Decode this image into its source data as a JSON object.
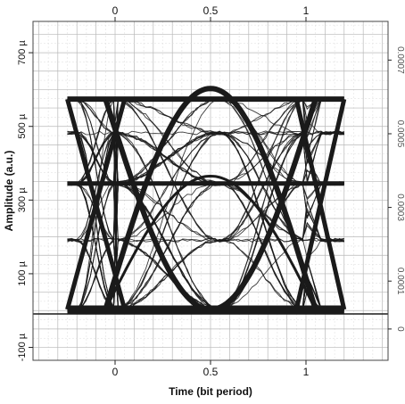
{
  "chart_data": {
    "type": "eye-diagram",
    "title": "",
    "xlabel": "Time (bit period)",
    "ylabel": "Amplitude (a.u.)",
    "x_ticks": [
      {
        "value": 0,
        "label": "0"
      },
      {
        "value": 0.5,
        "label": "0.5"
      },
      {
        "value": 1,
        "label": "1"
      }
    ],
    "top_x_ticks": [
      {
        "value": 0,
        "label": "0"
      },
      {
        "value": 0.5,
        "label": "0.5"
      },
      {
        "value": 1,
        "label": "1"
      }
    ],
    "y_ticks": [
      {
        "value": -0.0001,
        "label": "-100 µ"
      },
      {
        "value": 0.0001,
        "label": "100 µ"
      },
      {
        "value": 0.0003,
        "label": "300 µ"
      },
      {
        "value": 0.0005,
        "label": "500 µ"
      },
      {
        "value": 0.0007,
        "label": "700 µ"
      }
    ],
    "right_axis_labels": [
      {
        "value": -5e-05,
        "label": "0"
      },
      {
        "value": 8e-05,
        "label": "0.0001"
      },
      {
        "value": 0.00028,
        "label": "0.0003"
      },
      {
        "value": 0.00048,
        "label": "0.0005"
      },
      {
        "value": 0.00068,
        "label": "0.0007"
      }
    ],
    "xlim": [
      -0.43,
      1.43
    ],
    "ylim": [
      -0.000135,
      0.000785
    ],
    "grid": true,
    "time_window": [
      -0.25,
      1.2
    ],
    "levels": {
      "zero": 3e-06,
      "one": 0.000574,
      "mid": 0.000345,
      "eye_bottom": 3e-06,
      "eye_top_peak": 0.000603
    },
    "trace_count_hint": 60,
    "trace_color": "#1a1a1a"
  }
}
